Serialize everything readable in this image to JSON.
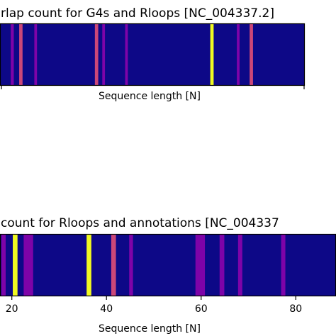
{
  "chart_data": [
    {
      "type": "heatmap",
      "title": "rlap count for G4s and Rloops [NC_004337.2]",
      "xlabel": "Sequence length [N]",
      "ylabel": "",
      "x_visible_range": [
        -2.2,
        88.4
      ],
      "xticks": [],
      "colormap": "plasma",
      "background_color": "#0d0887",
      "bands": [
        {
          "x": 1.0,
          "width": 0.9,
          "color": "#7e03a8"
        },
        {
          "x": 3.5,
          "width": 1.0,
          "color": "#cc4778"
        },
        {
          "x": 8.0,
          "width": 0.8,
          "color": "#7e03a8"
        },
        {
          "x": 26.0,
          "width": 1.0,
          "color": "#cc4778"
        },
        {
          "x": 28.2,
          "width": 0.8,
          "color": "#7e03a8"
        },
        {
          "x": 35.0,
          "width": 0.8,
          "color": "#7e03a8"
        },
        {
          "x": 60.3,
          "width": 1.0,
          "color": "#f0f921"
        },
        {
          "x": 68.2,
          "width": 0.8,
          "color": "#7e03a8"
        },
        {
          "x": 72.0,
          "width": 1.0,
          "color": "#cc4778"
        }
      ]
    },
    {
      "type": "heatmap",
      "title": "count for Rloops and annotations [NC_004337",
      "xlabel": "Sequence length [N]",
      "ylabel": "",
      "x_visible_range": [
        17.5,
        88.5
      ],
      "xticks": [
        "20",
        "40",
        "60",
        "80"
      ],
      "xtick_values": [
        20,
        40,
        60,
        80
      ],
      "colormap": "plasma",
      "background_color": "#0d0887",
      "bands": [
        {
          "x": 17.8,
          "width": 0.9,
          "color": "#7e03a8"
        },
        {
          "x": 20.2,
          "width": 1.0,
          "color": "#f0f921"
        },
        {
          "x": 22.5,
          "width": 2.0,
          "color": "#7e03a8"
        },
        {
          "x": 35.8,
          "width": 1.0,
          "color": "#f0f921"
        },
        {
          "x": 41.0,
          "width": 1.0,
          "color": "#cc4778"
        },
        {
          "x": 44.8,
          "width": 0.8,
          "color": "#7e03a8"
        },
        {
          "x": 58.8,
          "width": 2.0,
          "color": "#7e03a8"
        },
        {
          "x": 63.9,
          "width": 1.0,
          "color": "#7e03a8"
        },
        {
          "x": 67.8,
          "width": 0.9,
          "color": "#7e03a8"
        },
        {
          "x": 76.9,
          "width": 0.9,
          "color": "#7e03a8"
        }
      ]
    }
  ]
}
